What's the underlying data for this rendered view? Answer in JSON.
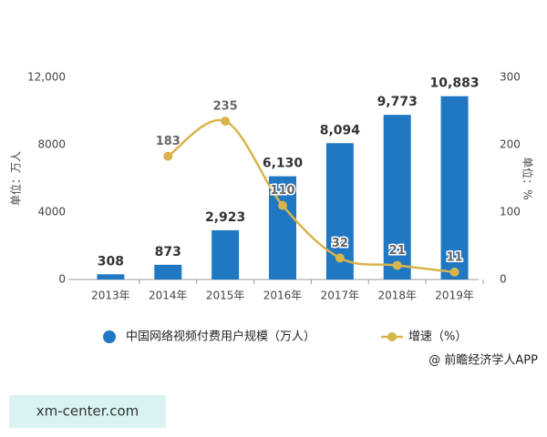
{
  "chart_data": {
    "type": "bar-line",
    "categories": [
      "2013年",
      "2014年",
      "2015年",
      "2016年",
      "2017年",
      "2018年",
      "2019年"
    ],
    "series": [
      {
        "name": "中国网络视频付费用户规模（万人）",
        "type": "bar",
        "color": "#1f78c1",
        "axis": "y",
        "values": [
          308,
          873,
          2923,
          6130,
          8094,
          9773,
          10883
        ],
        "value_labels": [
          "308",
          "873",
          "2,923",
          "6,130",
          "8,094",
          "9,773",
          "10,883"
        ]
      },
      {
        "name": "增速（%）",
        "type": "line",
        "color": "#d9b44a",
        "axis": "y2",
        "values": [
          null,
          183,
          235,
          110,
          32,
          21,
          11
        ]
      }
    ],
    "ylabel": "单位：万人",
    "y2label": "单位：%",
    "ylim": [
      0,
      12000
    ],
    "yticks": [
      0,
      4000,
      8000,
      {
        "value": 12000,
        "label": "12,000"
      }
    ],
    "y2lim": [
      0,
      300
    ],
    "y2ticks": [
      0,
      100,
      200,
      300
    ],
    "grid": false,
    "legend": "bottom",
    "source": "@ 前瞻经济学人APP"
  },
  "site_label": "xm-center.com"
}
